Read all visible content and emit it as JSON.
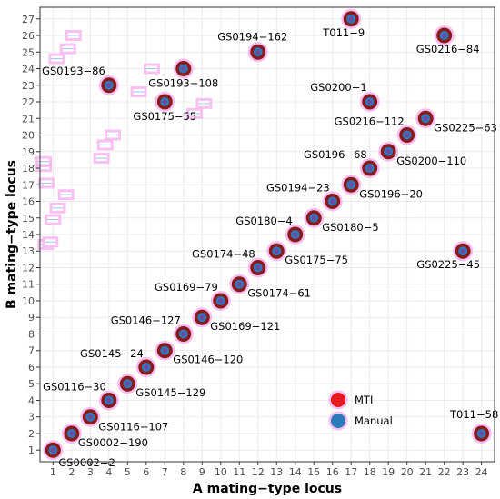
{
  "chart_data": {
    "type": "scatter",
    "xlabel": "A mating−type locus",
    "ylabel": "B mating−type locus",
    "xlim": [
      0.3,
      24.7
    ],
    "ylim": [
      0.3,
      27.7
    ],
    "x_ticks": [
      "1",
      "2",
      "3",
      "4",
      "5",
      "6",
      "7",
      "8",
      "9",
      "10",
      "11",
      "12",
      "13",
      "14",
      "15",
      "16",
      "17",
      "18",
      "19",
      "20",
      "21",
      "22",
      "23",
      "24"
    ],
    "y_ticks": [
      "1",
      "2",
      "3",
      "4",
      "5",
      "6",
      "7",
      "8",
      "9",
      "10",
      "11",
      "12",
      "13",
      "14",
      "15",
      "16",
      "17",
      "18",
      "19",
      "20",
      "21",
      "22",
      "23",
      "24",
      "25",
      "26",
      "27"
    ],
    "grid": true,
    "legend_position": "inside-bottom-right",
    "colors": {
      "mti": "#8b1a1a",
      "mti_legend": "#e41a1c",
      "manual": "#2b7bba",
      "halo": "#f7b6ef",
      "manual_label": "#1565a8",
      "grid": "#ebebeb",
      "panel_border": "#333333"
    },
    "series": [
      {
        "name": "MTI",
        "points": [
          {
            "label": "GS0002−2",
            "x": 1,
            "y": 1
          },
          {
            "label": "GS0002−190",
            "x": 2,
            "y": 2
          },
          {
            "label": "GS0116−107",
            "x": 3,
            "y": 3
          },
          {
            "label": "GS0116−30",
            "x": 4,
            "y": 4
          },
          {
            "label": "GS0145−129",
            "x": 5,
            "y": 5
          },
          {
            "label": "GS0145−24",
            "x": 6,
            "y": 6
          },
          {
            "label": "GS0146−120",
            "x": 7,
            "y": 7
          },
          {
            "label": "GS0146−127",
            "x": 8,
            "y": 8
          },
          {
            "label": "GS0169−121",
            "x": 9,
            "y": 9
          },
          {
            "label": "GS0169−79",
            "x": 10,
            "y": 10
          },
          {
            "label": "GS0174−61",
            "x": 11,
            "y": 11
          },
          {
            "label": "GS0174−48",
            "x": 12,
            "y": 12
          },
          {
            "label": "GS0175−75",
            "x": 13,
            "y": 13
          },
          {
            "label": "GS0180−4",
            "x": 14,
            "y": 14
          },
          {
            "label": "GS0180−5",
            "x": 15,
            "y": 15
          },
          {
            "label": "GS0194−23",
            "x": 16,
            "y": 16
          },
          {
            "label": "GS0196−20",
            "x": 17,
            "y": 17
          },
          {
            "label": "GS0196−68",
            "x": 18,
            "y": 18
          },
          {
            "label": "GS0200−110",
            "x": 19,
            "y": 19
          },
          {
            "label": "GS0216−112",
            "x": 20,
            "y": 20
          },
          {
            "label": "GS0225−63",
            "x": 21,
            "y": 21
          },
          {
            "label": "GS0200−1",
            "x": 18,
            "y": 22
          },
          {
            "label": "GS0175−55",
            "x": 7,
            "y": 22
          },
          {
            "label": "GS0193−86",
            "x": 4,
            "y": 23
          },
          {
            "label": "GS0193−108",
            "x": 8,
            "y": 24
          },
          {
            "label": "GS0194−162",
            "x": 12,
            "y": 25
          },
          {
            "label": "GS0216−84",
            "x": 22,
            "y": 26
          },
          {
            "label": "T011−9",
            "x": 17,
            "y": 27
          },
          {
            "label": "GS0225−45",
            "x": 23,
            "y": 13
          },
          {
            "label": "T011−58",
            "x": 24,
            "y": 2
          }
        ]
      },
      {
        "name": "Manual",
        "points": [
          {
            "x": 1,
            "y": 1
          },
          {
            "x": 2,
            "y": 2
          },
          {
            "x": 3,
            "y": 3
          },
          {
            "x": 4,
            "y": 4
          },
          {
            "x": 5,
            "y": 5
          },
          {
            "x": 6,
            "y": 6
          },
          {
            "x": 7,
            "y": 7
          },
          {
            "x": 8,
            "y": 8
          },
          {
            "x": 9,
            "y": 9
          },
          {
            "x": 10,
            "y": 10
          },
          {
            "x": 11,
            "y": 11
          },
          {
            "x": 12,
            "y": 12
          },
          {
            "x": 13,
            "y": 13
          },
          {
            "x": 14,
            "y": 14
          },
          {
            "x": 15,
            "y": 15
          },
          {
            "x": 16,
            "y": 16
          },
          {
            "x": 17,
            "y": 17
          },
          {
            "x": 18,
            "y": 18
          },
          {
            "x": 19,
            "y": 19
          },
          {
            "x": 20,
            "y": 20
          },
          {
            "x": 21,
            "y": 21
          },
          {
            "x": 18,
            "y": 22
          },
          {
            "x": 7,
            "y": 22
          },
          {
            "x": 4,
            "y": 23
          },
          {
            "x": 8,
            "y": 24
          },
          {
            "x": 12,
            "y": 25
          },
          {
            "x": 22,
            "y": 26
          },
          {
            "x": 17,
            "y": 27
          },
          {
            "x": 23,
            "y": 13
          },
          {
            "x": 24,
            "y": 2
          }
        ]
      }
    ],
    "artifacts": [
      {
        "x": 0.6,
        "y": 13.4
      },
      {
        "x": 0.85,
        "y": 13.55
      },
      {
        "x": 1.0,
        "y": 14.9
      },
      {
        "x": 1.25,
        "y": 15.6
      },
      {
        "x": 1.7,
        "y": 16.4
      },
      {
        "x": 0.65,
        "y": 17.1
      },
      {
        "x": 0.5,
        "y": 18.1
      },
      {
        "x": 0.5,
        "y": 18.4
      },
      {
        "x": 3.6,
        "y": 18.6
      },
      {
        "x": 3.8,
        "y": 19.4
      },
      {
        "x": 4.2,
        "y": 20.0
      },
      {
        "x": 8.6,
        "y": 21.3
      },
      {
        "x": 9.1,
        "y": 21.9
      },
      {
        "x": 5.6,
        "y": 22.6
      },
      {
        "x": 6.3,
        "y": 24.0
      },
      {
        "x": 1.2,
        "y": 24.6
      },
      {
        "x": 1.8,
        "y": 25.2
      },
      {
        "x": 2.1,
        "y": 26.0
      }
    ],
    "legend": [
      {
        "key": "mti",
        "label": "MTI"
      },
      {
        "key": "manual",
        "label": "Manual"
      }
    ]
  }
}
